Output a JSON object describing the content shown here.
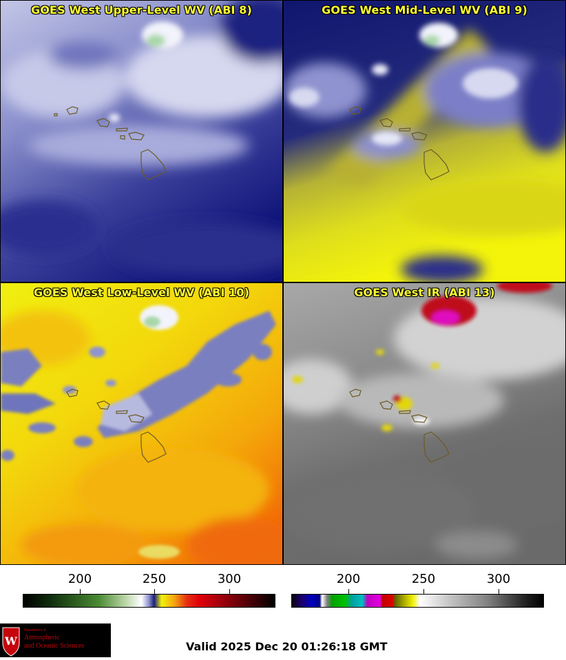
{
  "panels": [
    {
      "title": "GOES West Upper-Level WV (ABI 8)"
    },
    {
      "title": "GOES West Mid-Level WV (ABI 9)"
    },
    {
      "title": "GOES West Low-Level WV (ABI 10)"
    },
    {
      "title": "GOES West IR (ABI 13)"
    }
  ],
  "colorbars": [
    {
      "ticks": [
        "200",
        "250",
        "300"
      ]
    },
    {
      "ticks": [
        "200",
        "250",
        "300"
      ]
    }
  ],
  "logo": {
    "line1": "Department of",
    "line2": "Atmospheric",
    "line3": "and Oceanic Sciences"
  },
  "valid_text": "Valid 2025 Dec 20 01:26:18 GMT",
  "colors": {
    "wv_navy": "#1a1f7a",
    "wv_yellow": "#f2f20a",
    "orange": "#f5a510",
    "ir_gray": "#6e6e6e",
    "title_yellow": "#ffff33",
    "logo_red": "#c5050c"
  }
}
